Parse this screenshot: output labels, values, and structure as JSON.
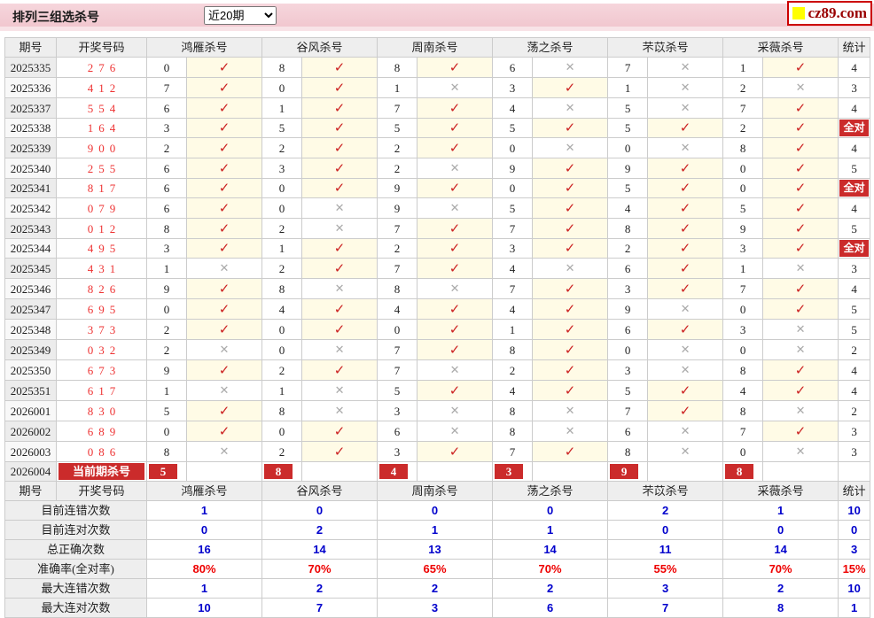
{
  "page": {
    "title": "排列三组选杀号",
    "range_select": {
      "value": "近20期"
    },
    "logo_text": "cz89.com"
  },
  "colors": {
    "accent_red": "#cb2b2b",
    "check_red": "#cc2222",
    "cross_gray": "#aaaaaa",
    "hit_bg": "#fffbe6",
    "stat_blue": "#0000cc",
    "stat_red": "#ee0000",
    "bar_pink": "#f3cbd3"
  },
  "table": {
    "header": {
      "period": "期号",
      "numbers": "开奖号码",
      "experts": [
        "鸿雁杀号",
        "谷风杀号",
        "周南杀号",
        "荡之杀号",
        "芣苡杀号",
        "采薇杀号"
      ],
      "stat": "统计"
    },
    "icons": {
      "correct": "check-icon",
      "wrong": "cross-icon"
    },
    "all_correct_label": "全对",
    "rows": [
      {
        "period": "2025335",
        "numbers": "276",
        "kills": [
          [
            0,
            true
          ],
          [
            8,
            true
          ],
          [
            8,
            true
          ],
          [
            6,
            false
          ],
          [
            7,
            false
          ],
          [
            1,
            true
          ]
        ],
        "stat": "4"
      },
      {
        "period": "2025336",
        "numbers": "412",
        "kills": [
          [
            7,
            true
          ],
          [
            0,
            true
          ],
          [
            1,
            false
          ],
          [
            3,
            true
          ],
          [
            1,
            false
          ],
          [
            2,
            false
          ]
        ],
        "stat": "3"
      },
      {
        "period": "2025337",
        "numbers": "554",
        "kills": [
          [
            6,
            true
          ],
          [
            1,
            true
          ],
          [
            7,
            true
          ],
          [
            4,
            false
          ],
          [
            5,
            false
          ],
          [
            7,
            true
          ]
        ],
        "stat": "4"
      },
      {
        "period": "2025338",
        "numbers": "164",
        "kills": [
          [
            3,
            true
          ],
          [
            5,
            true
          ],
          [
            5,
            true
          ],
          [
            5,
            true
          ],
          [
            5,
            true
          ],
          [
            2,
            true
          ]
        ],
        "stat": "全对"
      },
      {
        "period": "2025339",
        "numbers": "900",
        "kills": [
          [
            2,
            true
          ],
          [
            2,
            true
          ],
          [
            2,
            true
          ],
          [
            0,
            false
          ],
          [
            0,
            false
          ],
          [
            8,
            true
          ]
        ],
        "stat": "4"
      },
      {
        "period": "2025340",
        "numbers": "255",
        "kills": [
          [
            6,
            true
          ],
          [
            3,
            true
          ],
          [
            2,
            false
          ],
          [
            9,
            true
          ],
          [
            9,
            true
          ],
          [
            0,
            true
          ]
        ],
        "stat": "5"
      },
      {
        "period": "2025341",
        "numbers": "817",
        "kills": [
          [
            6,
            true
          ],
          [
            0,
            true
          ],
          [
            9,
            true
          ],
          [
            0,
            true
          ],
          [
            5,
            true
          ],
          [
            0,
            true
          ]
        ],
        "stat": "全对"
      },
      {
        "period": "2025342",
        "numbers": "079",
        "kills": [
          [
            6,
            true
          ],
          [
            0,
            false
          ],
          [
            9,
            false
          ],
          [
            5,
            true
          ],
          [
            4,
            true
          ],
          [
            5,
            true
          ]
        ],
        "stat": "4"
      },
      {
        "period": "2025343",
        "numbers": "012",
        "kills": [
          [
            8,
            true
          ],
          [
            2,
            false
          ],
          [
            7,
            true
          ],
          [
            7,
            true
          ],
          [
            8,
            true
          ],
          [
            9,
            true
          ]
        ],
        "stat": "5"
      },
      {
        "period": "2025344",
        "numbers": "495",
        "kills": [
          [
            3,
            true
          ],
          [
            1,
            true
          ],
          [
            2,
            true
          ],
          [
            3,
            true
          ],
          [
            2,
            true
          ],
          [
            3,
            true
          ]
        ],
        "stat": "全对"
      },
      {
        "period": "2025345",
        "numbers": "431",
        "kills": [
          [
            1,
            false
          ],
          [
            2,
            true
          ],
          [
            7,
            true
          ],
          [
            4,
            false
          ],
          [
            6,
            true
          ],
          [
            1,
            false
          ]
        ],
        "stat": "3"
      },
      {
        "period": "2025346",
        "numbers": "826",
        "kills": [
          [
            9,
            true
          ],
          [
            8,
            false
          ],
          [
            8,
            false
          ],
          [
            7,
            true
          ],
          [
            3,
            true
          ],
          [
            7,
            true
          ]
        ],
        "stat": "4"
      },
      {
        "period": "2025347",
        "numbers": "695",
        "kills": [
          [
            0,
            true
          ],
          [
            4,
            true
          ],
          [
            4,
            true
          ],
          [
            4,
            true
          ],
          [
            9,
            false
          ],
          [
            0,
            true
          ]
        ],
        "stat": "5"
      },
      {
        "period": "2025348",
        "numbers": "373",
        "kills": [
          [
            2,
            true
          ],
          [
            0,
            true
          ],
          [
            0,
            true
          ],
          [
            1,
            true
          ],
          [
            6,
            true
          ],
          [
            3,
            false
          ]
        ],
        "stat": "5"
      },
      {
        "period": "2025349",
        "numbers": "032",
        "kills": [
          [
            2,
            false
          ],
          [
            0,
            false
          ],
          [
            7,
            true
          ],
          [
            8,
            true
          ],
          [
            0,
            false
          ],
          [
            0,
            false
          ]
        ],
        "stat": "2"
      },
      {
        "period": "2025350",
        "numbers": "673",
        "kills": [
          [
            9,
            true
          ],
          [
            2,
            true
          ],
          [
            7,
            false
          ],
          [
            2,
            true
          ],
          [
            3,
            false
          ],
          [
            8,
            true
          ]
        ],
        "stat": "4"
      },
      {
        "period": "2025351",
        "numbers": "617",
        "kills": [
          [
            1,
            false
          ],
          [
            1,
            false
          ],
          [
            5,
            true
          ],
          [
            4,
            true
          ],
          [
            5,
            true
          ],
          [
            4,
            true
          ]
        ],
        "stat": "4"
      },
      {
        "period": "2026001",
        "numbers": "830",
        "kills": [
          [
            5,
            true
          ],
          [
            8,
            false
          ],
          [
            3,
            false
          ],
          [
            8,
            false
          ],
          [
            7,
            true
          ],
          [
            8,
            false
          ]
        ],
        "stat": "2"
      },
      {
        "period": "2026002",
        "numbers": "689",
        "kills": [
          [
            0,
            true
          ],
          [
            0,
            true
          ],
          [
            6,
            false
          ],
          [
            8,
            false
          ],
          [
            6,
            false
          ],
          [
            7,
            true
          ]
        ],
        "stat": "3"
      },
      {
        "period": "2026003",
        "numbers": "086",
        "kills": [
          [
            8,
            false
          ],
          [
            2,
            true
          ],
          [
            3,
            true
          ],
          [
            7,
            true
          ],
          [
            8,
            false
          ],
          [
            0,
            false
          ]
        ],
        "stat": "3"
      }
    ],
    "current_row": {
      "period": "2026004",
      "label": "当前期杀号",
      "kills": [
        "5",
        "8",
        "4",
        "3",
        "9",
        "8"
      ],
      "stat": ""
    },
    "stats_rows": [
      {
        "label": "目前连错次数",
        "values": [
          "1",
          "0",
          "0",
          "0",
          "2",
          "1",
          "10"
        ],
        "color": "blue"
      },
      {
        "label": "目前连对次数",
        "values": [
          "0",
          "2",
          "1",
          "1",
          "0",
          "0",
          "0"
        ],
        "color": "blue"
      },
      {
        "label": "总正确次数",
        "values": [
          "16",
          "14",
          "13",
          "14",
          "11",
          "14",
          "3"
        ],
        "color": "blue"
      },
      {
        "label": "准确率(全对率)",
        "values": [
          "80%",
          "70%",
          "65%",
          "70%",
          "55%",
          "70%",
          "15%"
        ],
        "color": "red"
      },
      {
        "label": "最大连错次数",
        "values": [
          "1",
          "2",
          "2",
          "2",
          "3",
          "2",
          "10"
        ],
        "color": "blue"
      },
      {
        "label": "最大连对次数",
        "values": [
          "10",
          "7",
          "3",
          "6",
          "7",
          "8",
          "1"
        ],
        "color": "blue"
      }
    ]
  }
}
